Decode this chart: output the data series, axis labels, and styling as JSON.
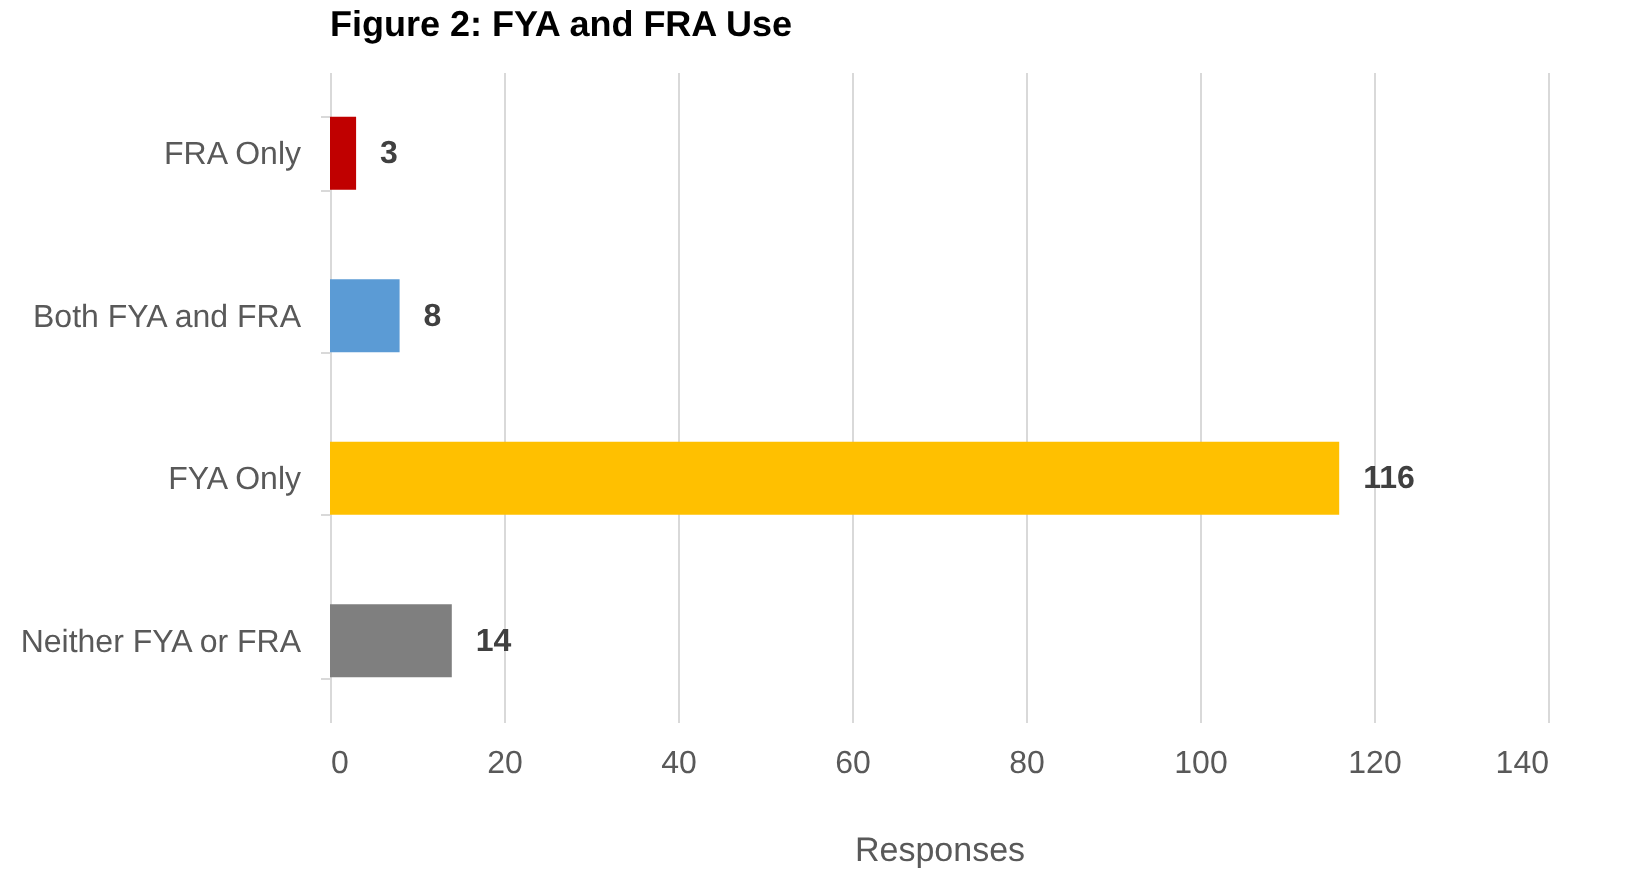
{
  "chart_data": {
    "type": "bar",
    "orientation": "horizontal",
    "title": "Figure 2: FYA and FRA Use",
    "xlabel": "Responses",
    "categories": [
      "FRA Only",
      "Both FYA and FRA",
      "FYA Only",
      "Neither FYA or FRA"
    ],
    "values": [
      3,
      8,
      116,
      14
    ],
    "colors": [
      "#c00000",
      "#5b9bd5",
      "#ffc000",
      "#7f7f7f"
    ],
    "xlim": [
      0,
      140
    ],
    "xticks": [
      0,
      20,
      40,
      60,
      80,
      100,
      120,
      140
    ],
    "grid": "x",
    "data_labels": true
  }
}
